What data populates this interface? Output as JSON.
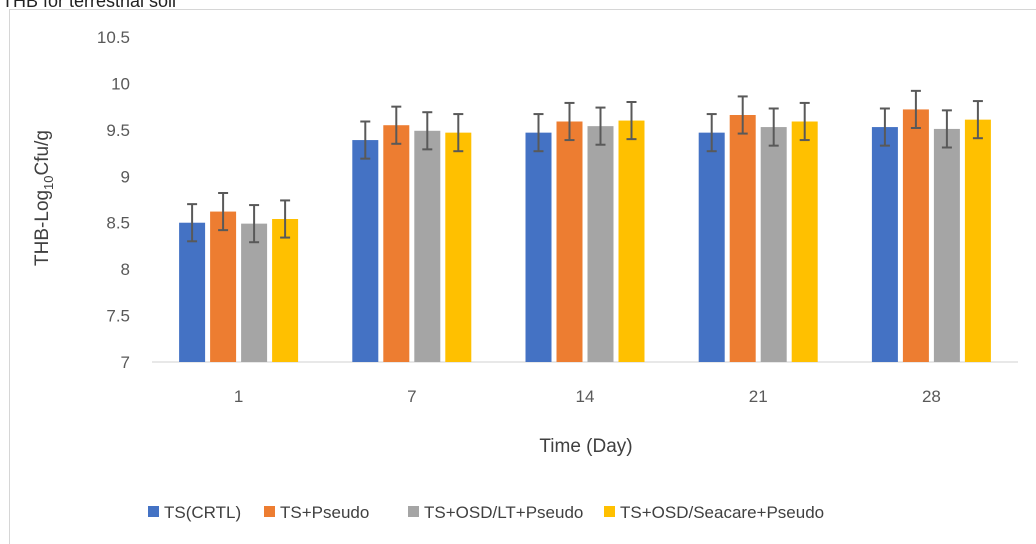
{
  "page_title": "THB for terrestrial soil",
  "chart_data": {
    "type": "bar",
    "xlabel": "Time (Day)",
    "ylabel": {
      "prefix": "THB-Log",
      "subscript": "10",
      "suffix": "Cfu/g"
    },
    "ylim": [
      7,
      10.5
    ],
    "yticks": [
      "7",
      "7.5",
      "8",
      "8.5",
      "9",
      "9.5",
      "10",
      "10.5"
    ],
    "categories": [
      "1",
      "7",
      "14",
      "21",
      "28"
    ],
    "grid": false,
    "legend_position": "bottom",
    "series": [
      {
        "name": "TS(CRTL)",
        "color": "#4472C4",
        "values": [
          8.5,
          9.39,
          9.47,
          9.47,
          9.53
        ],
        "errors": [
          0.2,
          0.2,
          0.2,
          0.2,
          0.2
        ]
      },
      {
        "name": "TS+Pseudo",
        "color": "#ED7D31",
        "values": [
          8.62,
          9.55,
          9.59,
          9.66,
          9.72
        ],
        "errors": [
          0.2,
          0.2,
          0.2,
          0.2,
          0.2
        ]
      },
      {
        "name": "TS+OSD/LT+Pseudo",
        "color": "#A5A5A5",
        "values": [
          8.49,
          9.49,
          9.54,
          9.53,
          9.51
        ],
        "errors": [
          0.2,
          0.2,
          0.2,
          0.2,
          0.2
        ]
      },
      {
        "name": "TS+OSD/Seacare+Pseudo",
        "color": "#FFC000",
        "values": [
          8.54,
          9.47,
          9.6,
          9.59,
          9.61
        ],
        "errors": [
          0.2,
          0.2,
          0.2,
          0.2,
          0.2
        ]
      }
    ]
  }
}
